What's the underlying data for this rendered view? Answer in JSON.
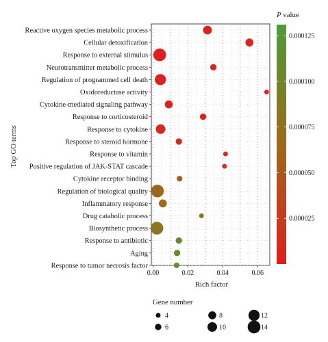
{
  "chart_data": {
    "type": "scatter",
    "title": "",
    "xlabel": "Rich factor",
    "ylabel": "Top GO terms",
    "xlim": [
      -0.001,
      0.067
    ],
    "xticks": [
      "0.00",
      "0.02",
      "0.04",
      "0.06"
    ],
    "xtick_values": [
      0,
      0.02,
      0.04,
      0.06
    ],
    "categories": [
      "Reactive oxygen species metabolic process",
      "Cellular detoxification",
      "Response to external stimulus",
      "Neurotransmitter metabolic process",
      "Regulation of programmed cell death",
      "Oxidoreductase activity",
      "Cytokine-mediated signaling pathway",
      "Response to corticosteroid",
      "Response to cytokine",
      "Response to steroid hormone",
      "Response to vitamin",
      "Positive regulation of JAK-STAT cascade",
      "Cytokine receptor binding",
      "Regulation of biological quality",
      "Inflammatory response",
      "Drug catabolic process",
      "Biosynthetic process",
      "Response to antibiotic",
      "Aging",
      "Response to tumor necrosis factor"
    ],
    "points": [
      {
        "term": "Reactive oxygen species metabolic process",
        "rich_factor": 0.0312,
        "gene_number": 9,
        "p_value": 5e-06
      },
      {
        "term": "Cellular detoxification",
        "rich_factor": 0.0553,
        "gene_number": 8,
        "p_value": 4e-06
      },
      {
        "term": "Response to external stimulus",
        "rich_factor": 0.0038,
        "gene_number": 14,
        "p_value": 1e-06
      },
      {
        "term": "Neurotransmitter metabolic process",
        "rich_factor": 0.0346,
        "gene_number": 6,
        "p_value": 6e-06
      },
      {
        "term": "Regulation of programmed cell death",
        "rich_factor": 0.0042,
        "gene_number": 12,
        "p_value": 5e-06
      },
      {
        "term": "Oxidoreductase activity",
        "rich_factor": 0.0652,
        "gene_number": 4,
        "p_value": 8e-06
      },
      {
        "term": "Cytokine-mediated signaling pathway",
        "rich_factor": 0.009,
        "gene_number": 8,
        "p_value": 6e-06
      },
      {
        "term": "Response to corticosteroid",
        "rich_factor": 0.0287,
        "gene_number": 6,
        "p_value": 8e-06
      },
      {
        "term": "Response to cytokine",
        "rich_factor": 0.0043,
        "gene_number": 10,
        "p_value": 1e-05
      },
      {
        "term": "Response to steroid hormone",
        "rich_factor": 0.0148,
        "gene_number": 6,
        "p_value": 1.4e-05
      },
      {
        "term": "Response to vitamin",
        "rich_factor": 0.0416,
        "gene_number": 4,
        "p_value": 1.6e-05
      },
      {
        "term": "Positive regulation of JAK-STAT cascade",
        "rich_factor": 0.041,
        "gene_number": 4,
        "p_value": 1.8e-05
      },
      {
        "term": "Cytokine receptor binding",
        "rich_factor": 0.0152,
        "gene_number": 5,
        "p_value": 5.6e-05
      },
      {
        "term": "Regulation of biological quality",
        "rich_factor": 0.0025,
        "gene_number": 14,
        "p_value": 6.5e-05
      },
      {
        "term": "Inflammatory response",
        "rich_factor": 0.0056,
        "gene_number": 8,
        "p_value": 7e-05
      },
      {
        "term": "Drug catabolic process",
        "rich_factor": 0.0278,
        "gene_number": 4,
        "p_value": 8.8e-05
      },
      {
        "term": "Biosynthetic process",
        "rich_factor": 0.0022,
        "gene_number": 14,
        "p_value": 8e-05
      },
      {
        "term": "Response to antibiotic",
        "rich_factor": 0.0148,
        "gene_number": 6,
        "p_value": 0.000105
      },
      {
        "term": "Aging",
        "rich_factor": 0.0138,
        "gene_number": 6,
        "p_value": 0.00011
      },
      {
        "term": "Response to tumor necrosis factor",
        "rich_factor": 0.0135,
        "gene_number": 5,
        "p_value": 0.000118
      }
    ],
    "color_legend": {
      "title_italic": "P",
      "title_rest": " value",
      "range": [
        0,
        0.000131
      ],
      "ticks": [
        2.5e-05,
        5e-05,
        7.5e-05,
        0.0001,
        0.000125
      ],
      "tick_labels": [
        "0.000025",
        "0.000050",
        "0.000075",
        "0.000100",
        "0.000125"
      ],
      "low_color": "#dd1f1f",
      "mid_color": "#9c6a1c",
      "high_color": "#4f9a3a"
    },
    "size_legend": {
      "title": "Gene number",
      "values": [
        4,
        6,
        8,
        10,
        12,
        14
      ],
      "labels": [
        "4",
        "6",
        "8",
        "10",
        "12",
        "14"
      ]
    },
    "grid": "dotted",
    "legend_position": "right"
  }
}
